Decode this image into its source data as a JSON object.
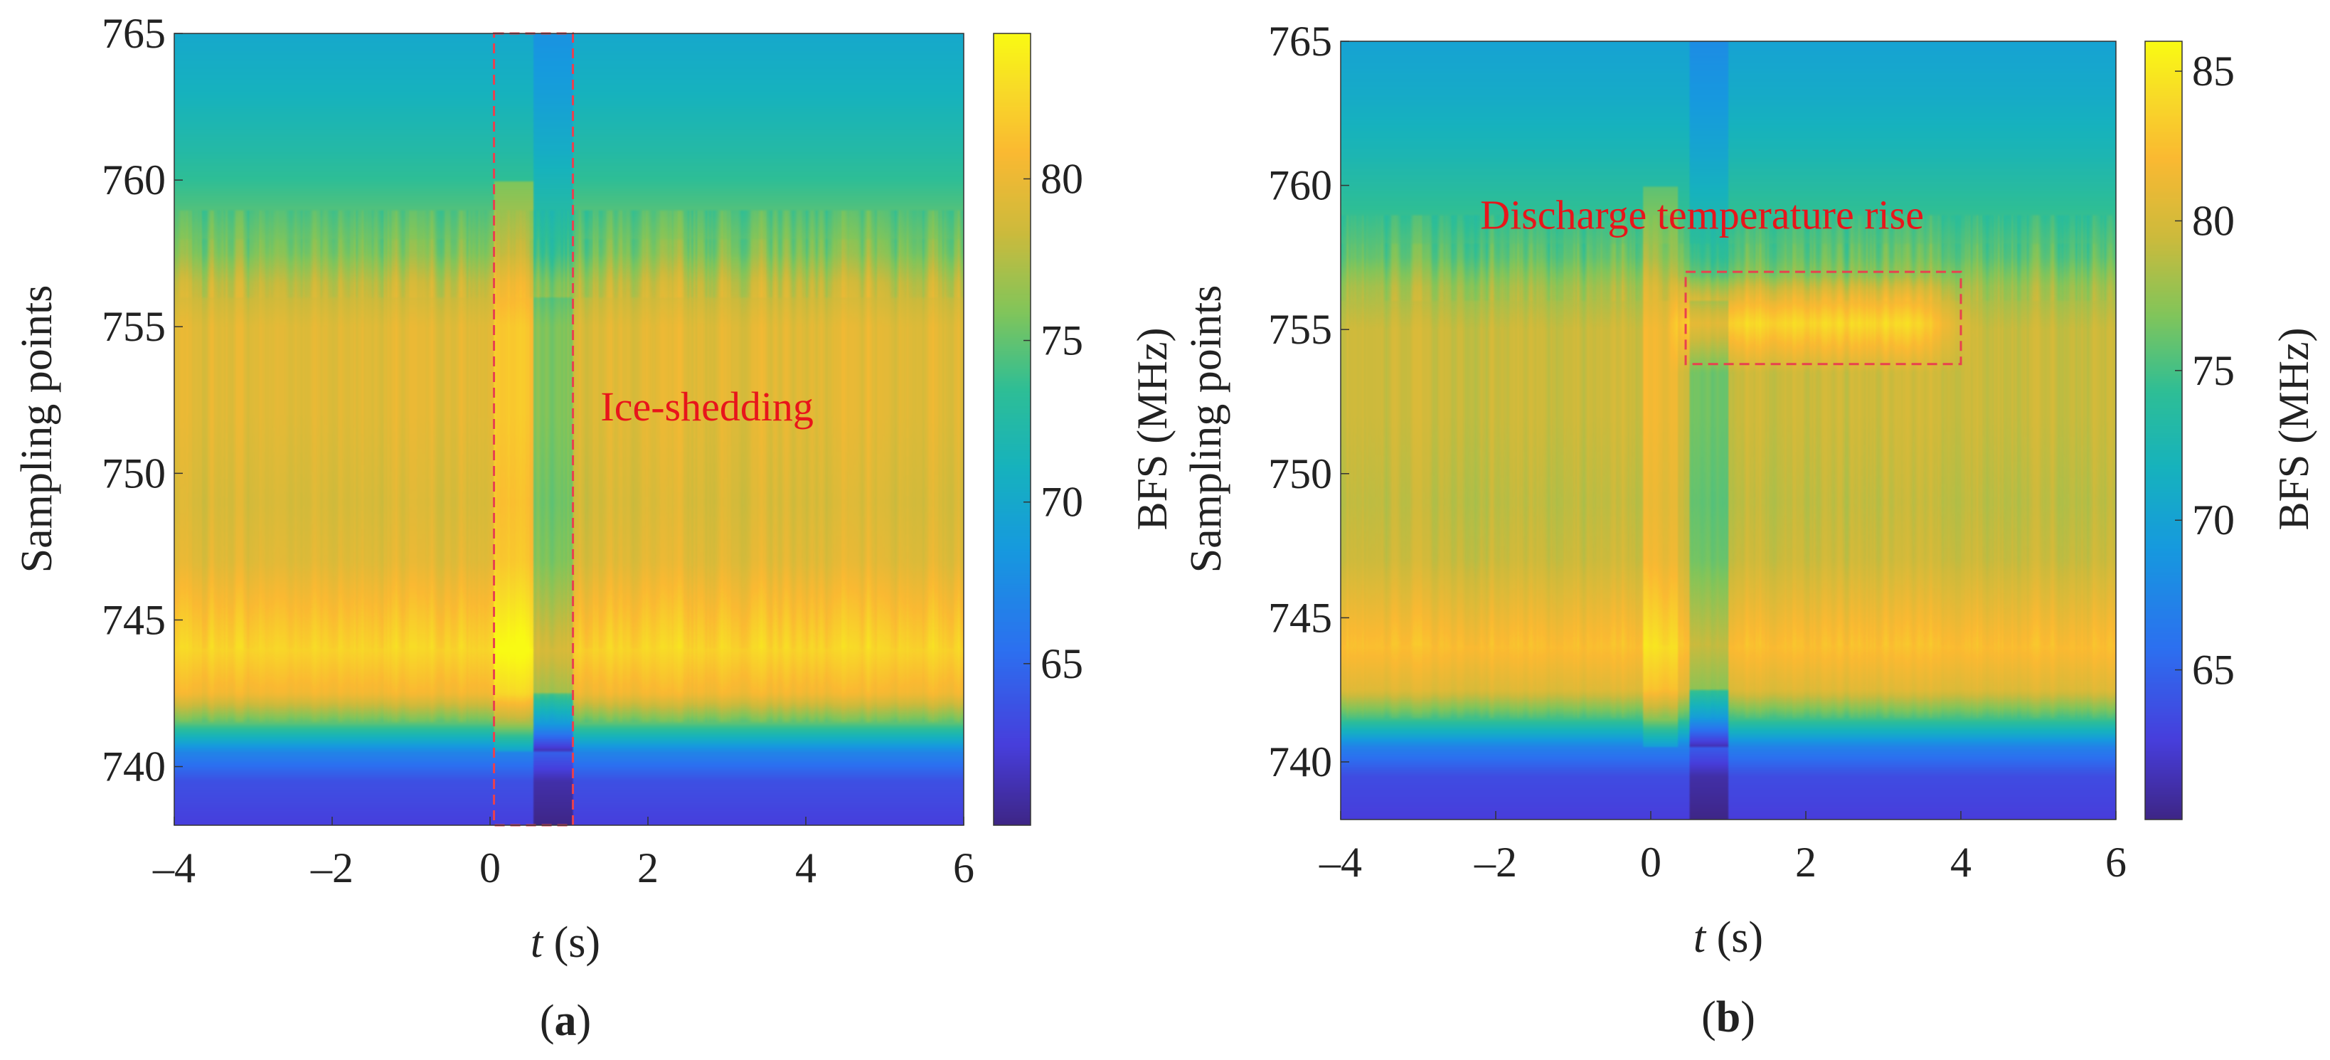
{
  "chart_data": [
    {
      "type": "heatmap",
      "panel_label": "(a)",
      "panel_letter": "a",
      "xlabel_var": "t",
      "xlabel_unit": " (s)",
      "ylabel": "Sampling points",
      "colorbar_label": "BFS (MHz)",
      "xlim": [
        -4,
        6
      ],
      "ylim": [
        738,
        765
      ],
      "clim": [
        60,
        84.5
      ],
      "xticks": [
        -4,
        -2,
        0,
        2,
        4,
        6
      ],
      "xtick_labels": [
        "–4",
        "–2",
        "0",
        "2",
        "4",
        "6"
      ],
      "yticks": [
        740,
        745,
        750,
        755,
        760,
        765
      ],
      "cbar_ticks": [
        65,
        70,
        75,
        80
      ],
      "annotation": {
        "text": "Ice-shedding",
        "x": 1.4,
        "y": 751.8
      },
      "highlight_box": {
        "x0": 0.05,
        "x1": 1.05,
        "y0": 738,
        "y1": 765
      },
      "dark_band": {
        "x0": 0.55,
        "x1": 1.05
      },
      "warm_column": {
        "x0": 0.05,
        "x1": 0.55
      },
      "profile": {
        "y": [
          738,
          739.5,
          740.5,
          741.5,
          742.5,
          744,
          745.5,
          747,
          749,
          752,
          755,
          756.5,
          757.5,
          759,
          761,
          763,
          765
        ],
        "bfs": [
          62.5,
          63.5,
          67,
          75,
          80.5,
          82.5,
          81,
          79.5,
          79,
          79.5,
          79.5,
          78,
          76,
          74.5,
          72.5,
          71,
          70
        ]
      }
    },
    {
      "type": "heatmap",
      "panel_label": "(b)",
      "panel_letter": "b",
      "xlabel_var": "t",
      "xlabel_unit": " (s)",
      "ylabel": "Sampling points",
      "colorbar_label": "BFS (MHz)",
      "xlim": [
        -4,
        6
      ],
      "ylim": [
        738,
        765
      ],
      "clim": [
        60,
        86
      ],
      "xticks": [
        -4,
        -2,
        0,
        2,
        4,
        6
      ],
      "xtick_labels": [
        "–4",
        "–2",
        "0",
        "2",
        "4",
        "6"
      ],
      "yticks": [
        740,
        745,
        750,
        755,
        760,
        765
      ],
      "cbar_ticks": [
        65,
        70,
        75,
        80,
        85
      ],
      "annotation": {
        "text": "Discharge temperature rise",
        "x": -2.2,
        "y": 758.5
      },
      "highlight_box": {
        "x0": 0.45,
        "x1": 4.0,
        "y0": 753.8,
        "y1": 757.0
      },
      "dark_band": {
        "x0": 0.5,
        "x1": 1.0
      },
      "warm_column": {
        "x0": -0.1,
        "x1": 0.35
      },
      "hot_spot": {
        "x0": 0.5,
        "x1": 3.4,
        "y": 755.2,
        "peak_bfs": 84
      },
      "profile": {
        "y": [
          738,
          739.5,
          740.5,
          741.5,
          742.5,
          744,
          745.5,
          747,
          749,
          752,
          755,
          756.5,
          757.5,
          759,
          761,
          763,
          765
        ],
        "bfs": [
          62.5,
          63.5,
          67,
          75,
          80.5,
          82.5,
          81,
          79.5,
          79,
          79.5,
          79.5,
          78,
          76,
          74.5,
          72.5,
          71,
          70
        ]
      }
    }
  ]
}
